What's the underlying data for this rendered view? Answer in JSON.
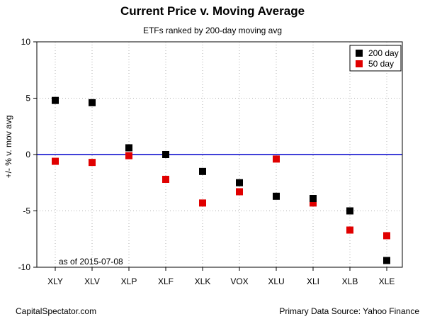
{
  "chart_data": {
    "type": "scatter",
    "title": "Current Price v. Moving Average",
    "subtitle": "ETFs ranked by 200-day moving avg",
    "ylabel": "+/- % v. mov avg",
    "xlabel": "",
    "categories": [
      "XLY",
      "XLV",
      "XLP",
      "XLF",
      "XLK",
      "VOX",
      "XLU",
      "XLI",
      "XLB",
      "XLE"
    ],
    "ylim": [
      -10,
      10
    ],
    "yticks": [
      -10,
      -5,
      0,
      5,
      10
    ],
    "grid": true,
    "legend_position": "top-right",
    "series": [
      {
        "name": "200 day",
        "color": "#000000",
        "values": [
          4.8,
          4.6,
          0.6,
          0.0,
          -1.5,
          -2.5,
          -3.7,
          -3.9,
          -5.0,
          -9.4
        ]
      },
      {
        "name": "50 day",
        "color": "#e00000",
        "values": [
          -0.6,
          -0.7,
          -0.1,
          -2.2,
          -4.3,
          -3.3,
          -0.4,
          -4.3,
          -6.7,
          -7.2
        ]
      }
    ],
    "reference_line": {
      "y": 0,
      "color": "#0000cc"
    },
    "annotation": "as of  2015-07-08"
  },
  "footer": {
    "left": "CapitalSpectator.com",
    "right": "Primary Data Source: Yahoo Finance"
  }
}
